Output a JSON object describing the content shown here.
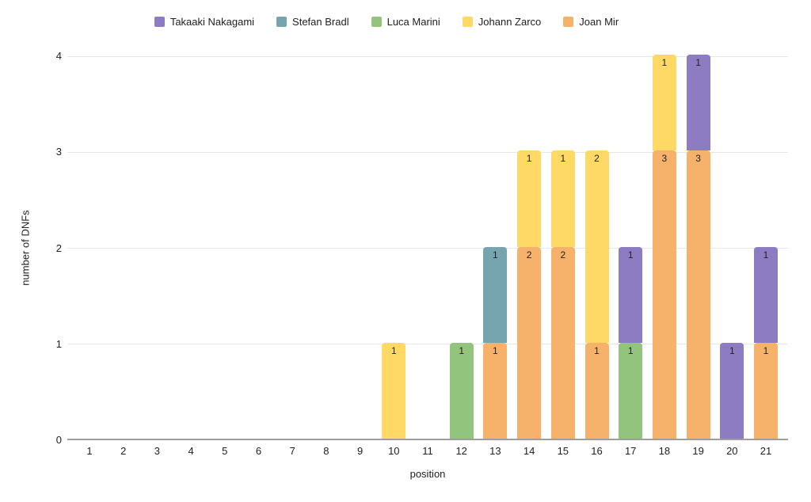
{
  "legend": {
    "items": [
      {
        "label": "Takaaki Nakagami",
        "color": "#8e7cc3"
      },
      {
        "label": "Stefan Bradl",
        "color": "#76a5af"
      },
      {
        "label": "Luca Marini",
        "color": "#93c47d"
      },
      {
        "label": "Johann Zarco",
        "color": "#ffd966"
      },
      {
        "label": "Joan Mir",
        "color": "#f6b26b"
      }
    ]
  },
  "chart_data": {
    "type": "bar",
    "stacked": true,
    "xlabel": "position",
    "ylabel": "number of DNFs",
    "categories": [
      "1",
      "2",
      "3",
      "4",
      "5",
      "6",
      "7",
      "8",
      "9",
      "10",
      "11",
      "12",
      "13",
      "14",
      "15",
      "16",
      "17",
      "18",
      "19",
      "20",
      "21"
    ],
    "yticks": [
      0,
      1,
      2,
      3,
      4
    ],
    "ylim": [
      0,
      4
    ],
    "grid": true,
    "legend_position": "top",
    "bar_value_labels": true,
    "stack_order": "bottom_to_top",
    "series": [
      {
        "name": "Joan Mir",
        "color": "#f6b26b",
        "values": [
          0,
          0,
          0,
          0,
          0,
          0,
          0,
          0,
          0,
          0,
          0,
          0,
          1,
          2,
          2,
          1,
          0,
          3,
          3,
          0,
          1
        ]
      },
      {
        "name": "Johann Zarco",
        "color": "#ffd966",
        "values": [
          0,
          0,
          0,
          0,
          0,
          0,
          0,
          0,
          0,
          1,
          0,
          0,
          0,
          1,
          1,
          2,
          0,
          1,
          0,
          0,
          0
        ]
      },
      {
        "name": "Luca Marini",
        "color": "#93c47d",
        "values": [
          0,
          0,
          0,
          0,
          0,
          0,
          0,
          0,
          0,
          0,
          0,
          1,
          0,
          0,
          0,
          0,
          1,
          0,
          0,
          0,
          0
        ]
      },
      {
        "name": "Stefan Bradl",
        "color": "#76a5af",
        "values": [
          0,
          0,
          0,
          0,
          0,
          0,
          0,
          0,
          0,
          0,
          0,
          0,
          1,
          0,
          0,
          0,
          0,
          0,
          0,
          0,
          0
        ]
      },
      {
        "name": "Takaaki Nakagami",
        "color": "#8e7cc3",
        "values": [
          0,
          0,
          0,
          0,
          0,
          0,
          0,
          0,
          0,
          0,
          0,
          0,
          0,
          0,
          0,
          0,
          1,
          0,
          1,
          1,
          1
        ]
      }
    ]
  }
}
